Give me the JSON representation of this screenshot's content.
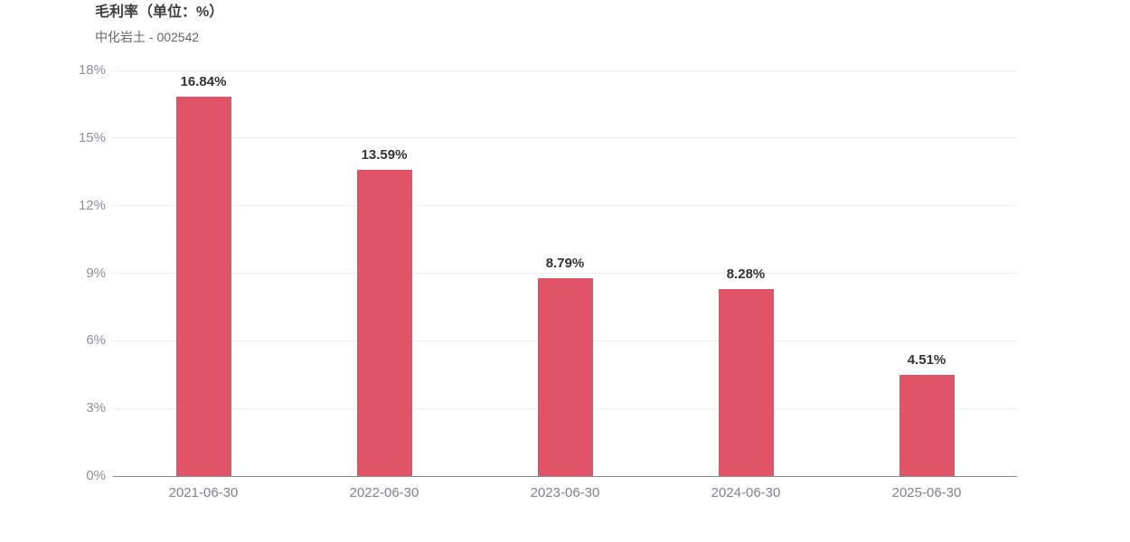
{
  "header": {
    "title": "毛利率（单位：%）",
    "subtitle": "中化岩土 - 002542"
  },
  "chart_data": {
    "type": "bar",
    "title": "毛利率（单位：%）",
    "subtitle": "中化岩土 - 002542",
    "categories": [
      "2021-06-30",
      "2022-06-30",
      "2023-06-30",
      "2024-06-30",
      "2025-06-30"
    ],
    "values": [
      16.84,
      13.59,
      8.79,
      8.28,
      4.51
    ],
    "value_labels": [
      "16.84%",
      "13.59%",
      "8.79%",
      "8.28%",
      "4.51%"
    ],
    "xlabel": "",
    "ylabel": "",
    "ylim": [
      0,
      18
    ],
    "yticks": [
      0,
      3,
      6,
      9,
      12,
      15,
      18
    ],
    "ytick_labels": [
      "0%",
      "3%",
      "6%",
      "9%",
      "12%",
      "15%",
      "18%"
    ],
    "grid": true,
    "legend_position": "none",
    "colors": {
      "bar": "#e15467",
      "grid_line": "#ececec",
      "axis_line": "#888888",
      "ytick_text": "#8a8f9c",
      "xtick_text": "#7e828f",
      "value_text": "#333333",
      "title_text": "#3d3d3d",
      "subtitle_text": "#666666",
      "background": "#ffffff"
    }
  }
}
